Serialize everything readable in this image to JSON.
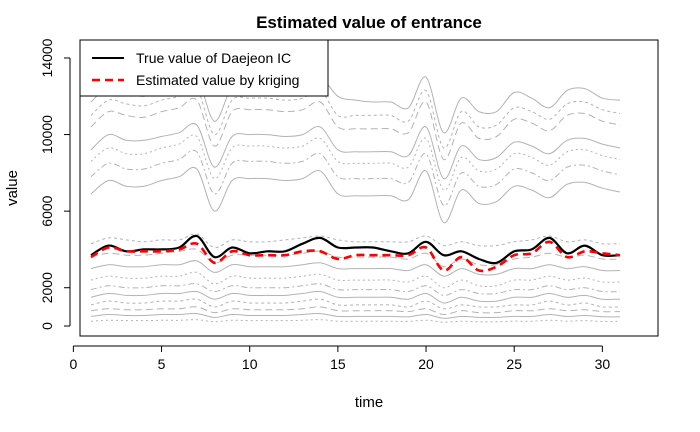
{
  "chart_data": {
    "type": "line",
    "title": "Estimated value of entrance",
    "xlabel": "time",
    "ylabel": "value",
    "xlim": [
      0,
      32
    ],
    "ylim": [
      0,
      15000
    ],
    "x_ticks": [
      0,
      5,
      10,
      15,
      20,
      25,
      30
    ],
    "y_ticks": [
      0,
      2000,
      6000,
      10000,
      14000
    ],
    "legend": {
      "placement": "top-left"
    },
    "grid": false,
    "x": [
      1,
      2,
      3,
      4,
      5,
      6,
      7,
      8,
      9,
      10,
      11,
      12,
      13,
      14,
      15,
      16,
      17,
      18,
      19,
      20,
      21,
      22,
      23,
      24,
      25,
      26,
      27,
      28,
      29,
      30,
      31
    ],
    "series": [
      {
        "name": "True value of Daejeon IC",
        "color": "#000000",
        "style": "solid",
        "values": [
          3700,
          4200,
          3900,
          4000,
          4000,
          4100,
          4700,
          3600,
          4100,
          3800,
          3900,
          3900,
          4300,
          4600,
          4100,
          4100,
          4100,
          3900,
          3800,
          4400,
          3700,
          3900,
          3500,
          3300,
          3900,
          4000,
          4600,
          3800,
          4200,
          3700,
          3700
        ]
      },
      {
        "name": "Estimated value by kriging",
        "color": "#ff0000",
        "style": "dashed",
        "values": [
          3600,
          4100,
          3900,
          3900,
          3900,
          4000,
          4300,
          3300,
          3900,
          3700,
          3700,
          3700,
          3900,
          3900,
          3500,
          3700,
          3700,
          3700,
          3700,
          4100,
          2900,
          3600,
          2900,
          3100,
          3700,
          3800,
          4400,
          3600,
          3900,
          3800,
          3700
        ]
      }
    ],
    "background_series": [
      {
        "color": "#b3b3b3",
        "values": [
          11700,
          12500,
          12200,
          12000,
          12300,
          12600,
          13000,
          10700,
          12500,
          12600,
          12600,
          12500,
          12600,
          13000,
          12000,
          11800,
          11700,
          11700,
          11400,
          13000,
          10100,
          11900,
          11200,
          11200,
          12200,
          11900,
          11400,
          12300,
          12400,
          11900,
          11800
        ]
      },
      {
        "color": "#b3b3b3",
        "values": [
          11000,
          11800,
          11600,
          11500,
          11800,
          12000,
          12400,
          10000,
          11800,
          11900,
          11900,
          11800,
          11900,
          12300,
          11000,
          11000,
          11000,
          11000,
          10700,
          12300,
          9300,
          11200,
          10400,
          10500,
          11400,
          11200,
          10800,
          11600,
          11700,
          11300,
          11100
        ]
      },
      {
        "color": "#b3b3b3",
        "values": [
          10400,
          11200,
          11000,
          10900,
          11200,
          11400,
          11800,
          9400,
          11200,
          11300,
          11300,
          11200,
          11300,
          11700,
          10400,
          10300,
          10300,
          10300,
          10100,
          11700,
          8700,
          10600,
          9800,
          9900,
          10800,
          10600,
          10200,
          11000,
          11100,
          10700,
          10500
        ]
      },
      {
        "color": "#b3b3b3",
        "values": [
          9200,
          10000,
          9700,
          9700,
          9900,
          10100,
          10500,
          8300,
          9900,
          10000,
          10000,
          9900,
          10000,
          10400,
          9200,
          9100,
          9100,
          9100,
          8900,
          10400,
          7700,
          9400,
          8700,
          8800,
          9600,
          9400,
          9000,
          9700,
          9800,
          9500,
          9300
        ]
      },
      {
        "color": "#b3b3b3",
        "values": [
          8600,
          9300,
          9000,
          9000,
          9300,
          9500,
          9900,
          7700,
          9300,
          9400,
          9400,
          9300,
          9400,
          9800,
          8600,
          8500,
          8500,
          8500,
          8300,
          9800,
          7100,
          8800,
          8100,
          8200,
          9000,
          8800,
          8400,
          9100,
          9200,
          8900,
          8700
        ]
      },
      {
        "color": "#b3b3b3",
        "values": [
          7800,
          8500,
          8200,
          8200,
          8500,
          8700,
          9100,
          6900,
          8500,
          8600,
          8600,
          8500,
          8600,
          9000,
          7800,
          7700,
          7700,
          7700,
          7500,
          9000,
          6300,
          8000,
          7300,
          7400,
          8200,
          8000,
          7600,
          8300,
          8400,
          8100,
          7900
        ]
      },
      {
        "color": "#b3b3b3",
        "values": [
          6900,
          7600,
          7300,
          7300,
          7600,
          7800,
          8200,
          6000,
          7600,
          7700,
          7700,
          7600,
          7700,
          8100,
          6900,
          6800,
          6800,
          6800,
          6600,
          8100,
          5400,
          7100,
          6400,
          6500,
          7300,
          7100,
          6700,
          7400,
          7500,
          7200,
          7000
        ]
      },
      {
        "color": "#b3b3b3",
        "values": [
          4300,
          4600,
          4500,
          4400,
          4500,
          4500,
          4800,
          4100,
          4500,
          4400,
          4400,
          4500,
          4600,
          4700,
          4500,
          4400,
          4400,
          4400,
          4400,
          4700,
          4200,
          4400,
          4200,
          4200,
          4400,
          4500,
          4700,
          4400,
          4500,
          4300,
          4300
        ]
      },
      {
        "color": "#b3b3b3",
        "values": [
          3600,
          3800,
          3700,
          3700,
          3800,
          3900,
          4000,
          3300,
          3700,
          3700,
          3700,
          3700,
          3800,
          3900,
          3600,
          3600,
          3600,
          3600,
          3500,
          3800,
          3100,
          3500,
          3200,
          3200,
          3500,
          3600,
          3800,
          3600,
          3700,
          3500,
          3500
        ]
      },
      {
        "color": "#b3b3b3",
        "values": [
          3000,
          3200,
          3100,
          3100,
          3200,
          3200,
          3400,
          2800,
          3200,
          3100,
          3100,
          3100,
          3200,
          3300,
          3000,
          3000,
          3000,
          3000,
          2900,
          3200,
          2600,
          3000,
          2700,
          2700,
          3000,
          3000,
          3200,
          3000,
          3100,
          2900,
          2900
        ]
      },
      {
        "color": "#b3b3b3",
        "values": [
          2400,
          2600,
          2500,
          2500,
          2600,
          2600,
          2800,
          2200,
          2600,
          2500,
          2500,
          2500,
          2600,
          2700,
          2400,
          2400,
          2400,
          2400,
          2300,
          2600,
          2000,
          2400,
          2100,
          2100,
          2400,
          2400,
          2600,
          2400,
          2500,
          2300,
          2300
        ]
      },
      {
        "color": "#b3b3b3",
        "values": [
          1900,
          2100,
          2000,
          2000,
          2100,
          2100,
          2200,
          1800,
          2100,
          2000,
          2000,
          2000,
          2100,
          2200,
          1900,
          1900,
          1900,
          1900,
          1800,
          2100,
          1600,
          1900,
          1700,
          1700,
          1900,
          1900,
          2100,
          1900,
          2000,
          1800,
          1800
        ]
      },
      {
        "color": "#b3b3b3",
        "values": [
          1500,
          1700,
          1600,
          1600,
          1700,
          1700,
          1800,
          1400,
          1700,
          1600,
          1600,
          1600,
          1700,
          1800,
          1500,
          1500,
          1500,
          1500,
          1400,
          1700,
          1200,
          1500,
          1300,
          1300,
          1500,
          1500,
          1700,
          1500,
          1600,
          1400,
          1400
        ]
      },
      {
        "color": "#b3b3b3",
        "values": [
          1100,
          1300,
          1200,
          1200,
          1300,
          1300,
          1400,
          1000,
          1300,
          1200,
          1200,
          1200,
          1300,
          1400,
          1100,
          1100,
          1100,
          1100,
          1000,
          1300,
          900,
          1100,
          1000,
          1000,
          1100,
          1100,
          1300,
          1100,
          1200,
          1000,
          1000
        ]
      },
      {
        "color": "#b3b3b3",
        "values": [
          800,
          900,
          850,
          850,
          900,
          900,
          1000,
          700,
          900,
          850,
          850,
          850,
          900,
          1000,
          800,
          800,
          800,
          800,
          750,
          900,
          600,
          800,
          700,
          700,
          800,
          800,
          900,
          800,
          850,
          750,
          750
        ]
      },
      {
        "color": "#b3b3b3",
        "values": [
          500,
          600,
          550,
          550,
          600,
          600,
          650,
          450,
          600,
          550,
          550,
          550,
          600,
          650,
          500,
          500,
          500,
          500,
          480,
          600,
          400,
          500,
          450,
          450,
          500,
          500,
          600,
          500,
          550,
          480,
          480
        ]
      },
      {
        "color": "#b3b3b3",
        "values": [
          250,
          300,
          280,
          280,
          300,
          300,
          330,
          220,
          300,
          280,
          280,
          280,
          300,
          330,
          250,
          250,
          250,
          250,
          240,
          300,
          200,
          250,
          220,
          220,
          250,
          250,
          300,
          250,
          280,
          240,
          240
        ]
      }
    ]
  }
}
